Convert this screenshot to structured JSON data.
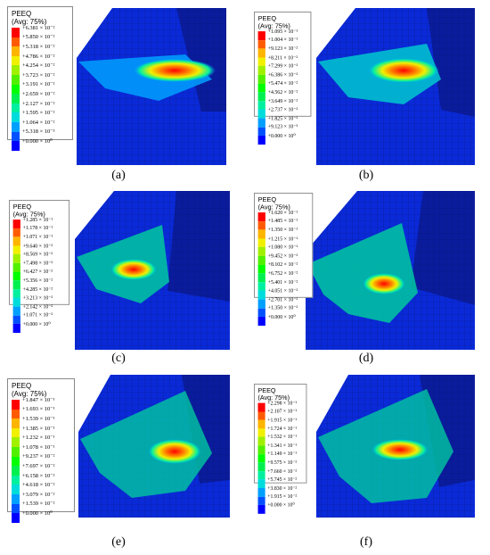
{
  "panels": [
    {
      "caption": "(a)",
      "legend_title": "PEEQ",
      "legend_subtitle": "(Avg: 75%)",
      "values": [
        "+6.381 × 10⁻²",
        "+5.850 × 10⁻²",
        "+5.318 × 10⁻²",
        "+4.786 × 10⁻²",
        "+4.254 × 10⁻²",
        "+3.723 × 10⁻²",
        "+3.191 × 10⁻²",
        "+2.659 × 10⁻²",
        "+2.127 × 10⁻²",
        "+1.595 × 10⁻²",
        "+1.064 × 10⁻²",
        "+5.318 × 10⁻³",
        "+0.000 × 10⁰"
      ]
    },
    {
      "caption": "(b)",
      "legend_title": "PEEQ",
      "legend_subtitle": "(Avg: 75%)",
      "values": [
        "+1.095 × 10⁻¹",
        "+1.004 × 10⁻¹",
        "+9.123 × 10⁻²",
        "+8.211 × 10⁻²",
        "+7.299 × 10⁻²",
        "+6.386 × 10⁻²",
        "+5.474 × 10⁻²",
        "+4.562 × 10⁻²",
        "+3.649 × 10⁻²",
        "+2.737 × 10⁻²",
        "+1.825 × 10⁻²",
        "+9.123 × 10⁻³",
        "+0.000 × 10⁰"
      ]
    },
    {
      "caption": "(c)",
      "legend_title": "PEEQ",
      "legend_subtitle": "(Avg: 75%)",
      "values": [
        "+1.285 × 10⁻¹",
        "+1.178 × 10⁻¹",
        "+1.071 × 10⁻¹",
        "+9.640 × 10⁻²",
        "+8.569 × 10⁻²",
        "+7.498 × 10⁻²",
        "+6.427 × 10⁻²",
        "+5.356 × 10⁻²",
        "+4.285 × 10⁻²",
        "+3.213 × 10⁻²",
        "+2.142 × 10⁻²",
        "+1.071 × 10⁻²",
        "+0.000 × 10⁰"
      ]
    },
    {
      "caption": "(d)",
      "legend_title": "PEEQ",
      "legend_subtitle": "(Avg: 75%)",
      "values": [
        "+1.620 × 10⁻¹",
        "+1.485 × 10⁻¹",
        "+1.350 × 10⁻¹",
        "+1.215 × 10⁻¹",
        "+1.080 × 10⁻¹",
        "+9.452 × 10⁻²",
        "+8.102 × 10⁻²",
        "+6.752 × 10⁻²",
        "+5.401 × 10⁻²",
        "+4.051 × 10⁻²",
        "+2.701 × 10⁻²",
        "+1.350 × 10⁻²",
        "+0.000 × 10⁰"
      ]
    },
    {
      "caption": "(e)",
      "legend_title": "PEEQ",
      "legend_subtitle": "(Avg: 75%)",
      "values": [
        "+1.847 × 10⁻¹",
        "+1.693 × 10⁻¹",
        "+1.539 × 10⁻¹",
        "+1.385 × 10⁻¹",
        "+1.232 × 10⁻¹",
        "+1.078 × 10⁻¹",
        "+9.237 × 10⁻²",
        "+7.697 × 10⁻²",
        "+6.158 × 10⁻²",
        "+4.618 × 10⁻²",
        "+3.079 × 10⁻²",
        "+1.539 × 10⁻²",
        "+0.000 × 10⁰"
      ]
    },
    {
      "caption": "(f)",
      "legend_title": "PEEQ",
      "legend_subtitle": "(Avg: 75%)",
      "values": [
        "+2.298 × 10⁻¹",
        "+2.107 × 10⁻¹",
        "+1.915 × 10⁻¹",
        "+1.724 × 10⁻¹",
        "+1.532 × 10⁻¹",
        "+1.341 × 10⁻¹",
        "+1.149 × 10⁻¹",
        "+9.575 × 10⁻²",
        "+7.660 × 10⁻²",
        "+5.745 × 10⁻²",
        "+3.830 × 10⁻²",
        "+1.915 × 10⁻²",
        "+0.000 × 10⁰"
      ]
    }
  ],
  "contour_colors": [
    "#ff0000",
    "#ff5a00",
    "#ffb400",
    "#f0f000",
    "#a0f000",
    "#50f000",
    "#00ff00",
    "#00f050",
    "#00f0a0",
    "#00dcdc",
    "#00a0ff",
    "#0050ff",
    "#0000ff"
  ],
  "model_colors": {
    "body": "#0a2ad8",
    "dark_face": "#0a1c9c",
    "mesh": "#06146e"
  }
}
